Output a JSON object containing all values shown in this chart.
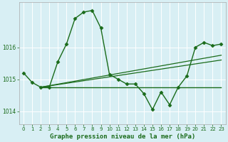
{
  "background_color": "#d8eff4",
  "grid_color": "#ffffff",
  "line_color": "#1a6b1a",
  "title": "Graphe pression niveau de la mer (hPa)",
  "xlim": [
    -0.5,
    23.5
  ],
  "ylim": [
    1013.6,
    1017.4
  ],
  "yticks": [
    1014,
    1015,
    1016
  ],
  "xticks": [
    0,
    1,
    2,
    3,
    4,
    5,
    6,
    7,
    8,
    9,
    10,
    11,
    12,
    13,
    14,
    15,
    16,
    17,
    18,
    19,
    20,
    21,
    22,
    23
  ],
  "series": [
    {
      "x": [
        0,
        1,
        2,
        3,
        4,
        5,
        6,
        7,
        8,
        9,
        10,
        11,
        12,
        13,
        14,
        15,
        16,
        17,
        18,
        19,
        20,
        21,
        22,
        23
      ],
      "y": [
        1015.2,
        1014.9,
        1014.75,
        1014.75,
        1015.55,
        1016.1,
        1016.9,
        1017.1,
        1017.15,
        1016.6,
        1015.15,
        1015.0,
        1014.85,
        1014.85,
        1014.55,
        1014.05,
        1014.6,
        1014.2,
        1014.75,
        1015.1,
        1016.0,
        1016.15,
        1016.05,
        1016.1
      ],
      "marker": "D",
      "markersize": 2.5,
      "linewidth": 1.0
    },
    {
      "x": [
        2,
        23
      ],
      "y": [
        1014.75,
        1015.6
      ],
      "marker": null,
      "linewidth": 0.9
    },
    {
      "x": [
        2,
        23
      ],
      "y": [
        1014.75,
        1015.75
      ],
      "marker": null,
      "linewidth": 0.9
    },
    {
      "x": [
        2,
        23
      ],
      "y": [
        1014.75,
        1014.75
      ],
      "marker": null,
      "linewidth": 1.0
    }
  ],
  "title_fontsize": 6.5,
  "tick_fontsize": 5.5
}
